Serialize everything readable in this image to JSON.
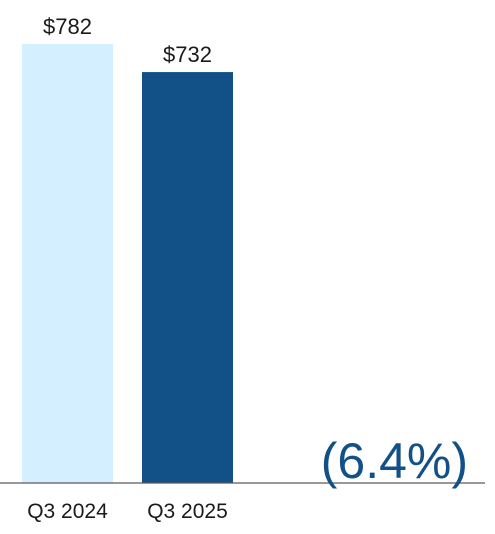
{
  "chart_data": {
    "type": "bar",
    "categories": [
      "Q3 2024",
      "Q3 2025"
    ],
    "values": [
      782,
      732
    ],
    "value_labels": [
      "$782",
      "$732"
    ],
    "bar_colors": [
      "#d4efff",
      "#115188"
    ],
    "axis_color": "#5a5a5a",
    "change_label": "(6.4%)",
    "change_color": "#115188",
    "ylim": [
      0,
      782
    ],
    "grid": false,
    "legend": "none"
  }
}
